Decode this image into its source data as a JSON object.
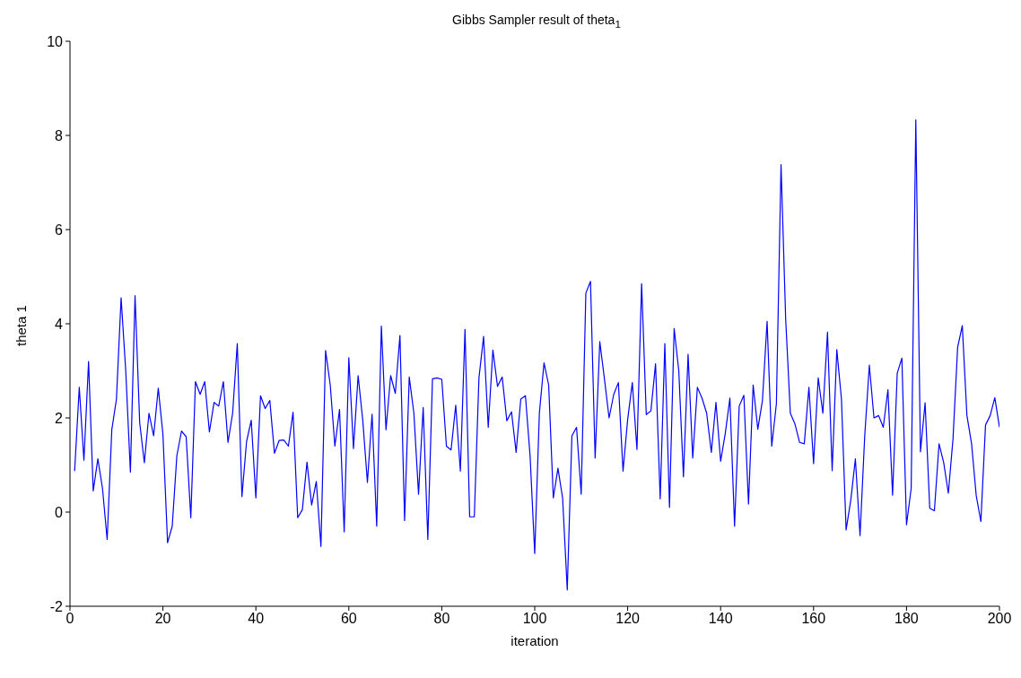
{
  "chart_data": {
    "type": "line",
    "title": "Gibbs Sampler result of theta$_{1}$",
    "xlabel": "iteration",
    "ylabel": "theta 1",
    "x": [
      1,
      2,
      3,
      4,
      5,
      6,
      7,
      8,
      9,
      10,
      11,
      12,
      13,
      14,
      15,
      16,
      17,
      18,
      19,
      20,
      21,
      22,
      23,
      24,
      25,
      26,
      27,
      28,
      29,
      30,
      31,
      32,
      33,
      34,
      35,
      36,
      37,
      38,
      39,
      40,
      41,
      42,
      43,
      44,
      45,
      46,
      47,
      48,
      49,
      50,
      51,
      52,
      53,
      54,
      55,
      56,
      57,
      58,
      59,
      60,
      61,
      62,
      63,
      64,
      65,
      66,
      67,
      68,
      69,
      70,
      71,
      72,
      73,
      74,
      75,
      76,
      77,
      78,
      79,
      80,
      81,
      82,
      83,
      84,
      85,
      86,
      87,
      88,
      89,
      90,
      91,
      92,
      93,
      94,
      95,
      96,
      97,
      98,
      99,
      100,
      101,
      102,
      103,
      104,
      105,
      106,
      107,
      108,
      109,
      110,
      111,
      112,
      113,
      114,
      115,
      116,
      117,
      118,
      119,
      120,
      121,
      122,
      123,
      124,
      125,
      126,
      127,
      128,
      129,
      130,
      131,
      132,
      133,
      134,
      135,
      136,
      137,
      138,
      139,
      140,
      141,
      142,
      143,
      144,
      145,
      146,
      147,
      148,
      149,
      150,
      151,
      152,
      153,
      154,
      155,
      156,
      157,
      158,
      159,
      160,
      161,
      162,
      163,
      164,
      165,
      166,
      167,
      168,
      169,
      170,
      171,
      172,
      173,
      174,
      175,
      176,
      177,
      178,
      179,
      180,
      181,
      182,
      183,
      184,
      185,
      186,
      187,
      188,
      189,
      190,
      191,
      192,
      193,
      194,
      195,
      196,
      197,
      198,
      199,
      200
    ],
    "series": [
      {
        "color": "#0000ff",
        "values": [
          0.87,
          2.65,
          1.1,
          3.2,
          0.45,
          1.13,
          0.5,
          -0.58,
          1.75,
          2.4,
          4.55,
          3.0,
          0.85,
          4.6,
          1.9,
          1.05,
          2.1,
          1.62,
          2.63,
          1.65,
          -0.65,
          -0.3,
          1.2,
          1.72,
          1.6,
          -0.12,
          2.77,
          2.5,
          2.77,
          1.7,
          2.33,
          2.25,
          2.77,
          1.48,
          2.1,
          3.58,
          0.33,
          1.5,
          1.95,
          0.3,
          2.47,
          2.2,
          2.37,
          1.25,
          1.52,
          1.53,
          1.4,
          2.12,
          -0.12,
          0.05,
          1.06,
          0.15,
          0.65,
          -0.73,
          3.43,
          2.7,
          1.4,
          2.18,
          -0.42,
          3.28,
          1.35,
          2.9,
          1.95,
          0.63,
          2.08,
          -0.3,
          3.95,
          1.75,
          2.9,
          2.52,
          3.75,
          -0.18,
          2.87,
          2.1,
          0.38,
          2.22,
          -0.58,
          2.83,
          2.85,
          2.82,
          1.4,
          1.32,
          2.27,
          0.87,
          3.88,
          -0.1,
          -0.1,
          2.85,
          3.73,
          1.8,
          3.44,
          2.67,
          2.87,
          1.94,
          2.13,
          1.27,
          2.4,
          2.47,
          1.2,
          -0.88,
          2.1,
          3.17,
          2.7,
          0.3,
          0.93,
          0.3,
          -1.65,
          1.62,
          1.8,
          0.38,
          4.65,
          4.9,
          1.15,
          3.62,
          2.83,
          2.0,
          2.5,
          2.75,
          0.87,
          1.97,
          2.75,
          1.33,
          4.85,
          2.07,
          2.15,
          3.15,
          0.28,
          3.58,
          0.1,
          3.9,
          3.0,
          0.75,
          3.35,
          1.15,
          2.65,
          2.42,
          2.1,
          1.27,
          2.33,
          1.08,
          1.67,
          2.42,
          -0.3,
          2.25,
          2.48,
          0.17,
          2.7,
          1.76,
          2.37,
          4.05,
          1.4,
          2.3,
          7.38,
          4.1,
          2.1,
          1.87,
          1.48,
          1.45,
          2.65,
          1.03,
          2.85,
          2.1,
          3.82,
          0.88,
          3.45,
          2.4,
          -0.38,
          0.25,
          1.13,
          -0.5,
          1.6,
          3.12,
          2.0,
          2.05,
          1.8,
          2.6,
          0.36,
          2.95,
          3.27,
          -0.27,
          0.5,
          8.33,
          1.28,
          2.32,
          0.08,
          0.03,
          1.45,
          1.05,
          0.4,
          1.55,
          3.5,
          3.96,
          2.05,
          1.45,
          0.35,
          -0.2,
          1.85,
          2.05,
          2.43,
          1.8
        ]
      }
    ],
    "xlim": [
      0,
      200
    ],
    "xticks": [
      0,
      20,
      40,
      60,
      80,
      100,
      120,
      140,
      160,
      180,
      200
    ],
    "ylim": [
      -2,
      10
    ],
    "yticks": [
      -2,
      0,
      2,
      4,
      6,
      8,
      10
    ],
    "grid": false,
    "legend": false,
    "marker": "none",
    "line_style": "solid"
  }
}
